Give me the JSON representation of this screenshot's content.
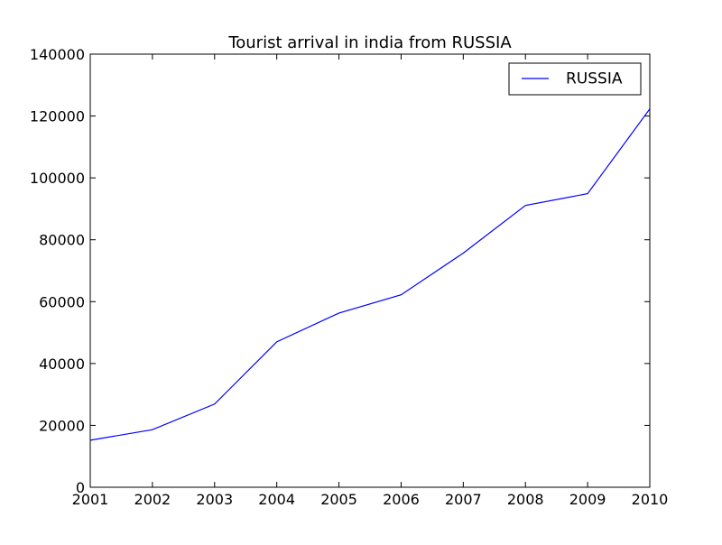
{
  "chart_data": {
    "type": "line",
    "title": "Tourist arrival in india from RUSSIA",
    "xlabel": "",
    "ylabel": "",
    "x": [
      2001,
      2002,
      2003,
      2004,
      2005,
      2006,
      2007,
      2008,
      2009,
      2010
    ],
    "series": [
      {
        "name": "RUSSIA",
        "color": "#0000ff",
        "values": [
          15200,
          18600,
          26900,
          47000,
          56300,
          62200,
          75700,
          91100,
          94900,
          122300
        ]
      }
    ],
    "xlim": [
      2001,
      2010
    ],
    "ylim": [
      0,
      140000
    ],
    "x_ticks": [
      "2001",
      "2002",
      "2003",
      "2004",
      "2005",
      "2006",
      "2007",
      "2008",
      "2009",
      "2010"
    ],
    "y_ticks": [
      "0",
      "20000",
      "40000",
      "60000",
      "80000",
      "100000",
      "120000",
      "140000"
    ],
    "grid": false,
    "legend_position": "top-right"
  }
}
